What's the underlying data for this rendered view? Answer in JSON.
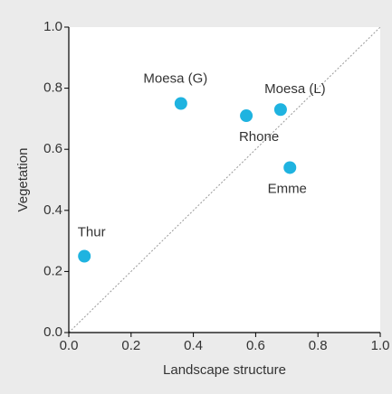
{
  "chart_data": {
    "type": "scatter",
    "xlabel": "Landscape structure",
    "ylabel": "Vegetation",
    "labels": [
      "Thur",
      "Moesa (G)",
      "Rhone",
      "Moesa (L)",
      "Emme"
    ],
    "x": [
      0.05,
      0.36,
      0.57,
      0.68,
      0.71
    ],
    "values": [
      0.25,
      0.75,
      0.71,
      0.73,
      0.54
    ],
    "color": "#1fb3e0",
    "xlim": [
      0,
      1
    ],
    "ylim": [
      0,
      1
    ],
    "xticks": [
      {
        "value": 0,
        "label": "0.0"
      },
      0.2,
      0.4,
      0.6,
      0.8,
      {
        "value": 1,
        "label": "1.0"
      }
    ],
    "yticks": [
      {
        "value": 0,
        "label": "0.0"
      },
      0.2,
      0.4,
      0.6,
      0.8,
      {
        "value": 1,
        "label": "1.0"
      }
    ],
    "grid": false
  }
}
